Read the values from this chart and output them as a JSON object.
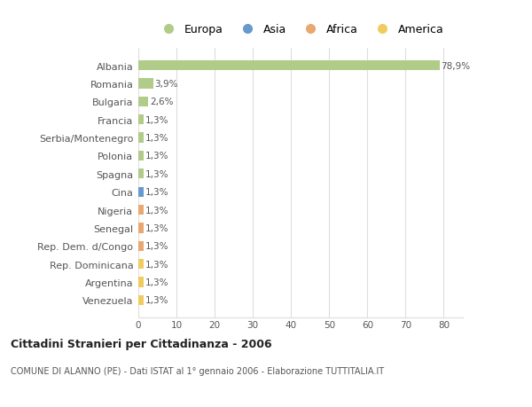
{
  "countries": [
    "Albania",
    "Romania",
    "Bulgaria",
    "Francia",
    "Serbia/Montenegro",
    "Polonia",
    "Spagna",
    "Cina",
    "Nigeria",
    "Senegal",
    "Rep. Dem. d/Congo",
    "Rep. Dominicana",
    "Argentina",
    "Venezuela"
  ],
  "values": [
    78.9,
    3.9,
    2.6,
    1.3,
    1.3,
    1.3,
    1.3,
    1.3,
    1.3,
    1.3,
    1.3,
    1.3,
    1.3,
    1.3
  ],
  "labels": [
    "78,9%",
    "3,9%",
    "2,6%",
    "1,3%",
    "1,3%",
    "1,3%",
    "1,3%",
    "1,3%",
    "1,3%",
    "1,3%",
    "1,3%",
    "1,3%",
    "1,3%",
    "1,3%"
  ],
  "categories": [
    "Europa",
    "Europa",
    "Europa",
    "Europa",
    "Europa",
    "Europa",
    "Europa",
    "Asia",
    "Africa",
    "Africa",
    "Africa",
    "America",
    "America",
    "America"
  ],
  "colors": {
    "Europa": "#b0cc88",
    "Asia": "#6699cc",
    "Africa": "#e8a870",
    "America": "#f0cc60"
  },
  "legend_labels": [
    "Europa",
    "Asia",
    "Africa",
    "America"
  ],
  "legend_colors": [
    "#b0cc88",
    "#6699cc",
    "#e8a870",
    "#f0cc60"
  ],
  "title": "Cittadini Stranieri per Cittadinanza - 2006",
  "subtitle": "COMUNE DI ALANNO (PE) - Dati ISTAT al 1° gennaio 2006 - Elaborazione TUTTITALIA.IT",
  "xlim": [
    0,
    85
  ],
  "xticks": [
    0,
    10,
    20,
    30,
    40,
    50,
    60,
    70,
    80
  ],
  "bg_color": "#ffffff",
  "plot_bg_color": "#ffffff",
  "grid_color": "#dddddd",
  "text_color": "#555555",
  "label_color": "#555555"
}
